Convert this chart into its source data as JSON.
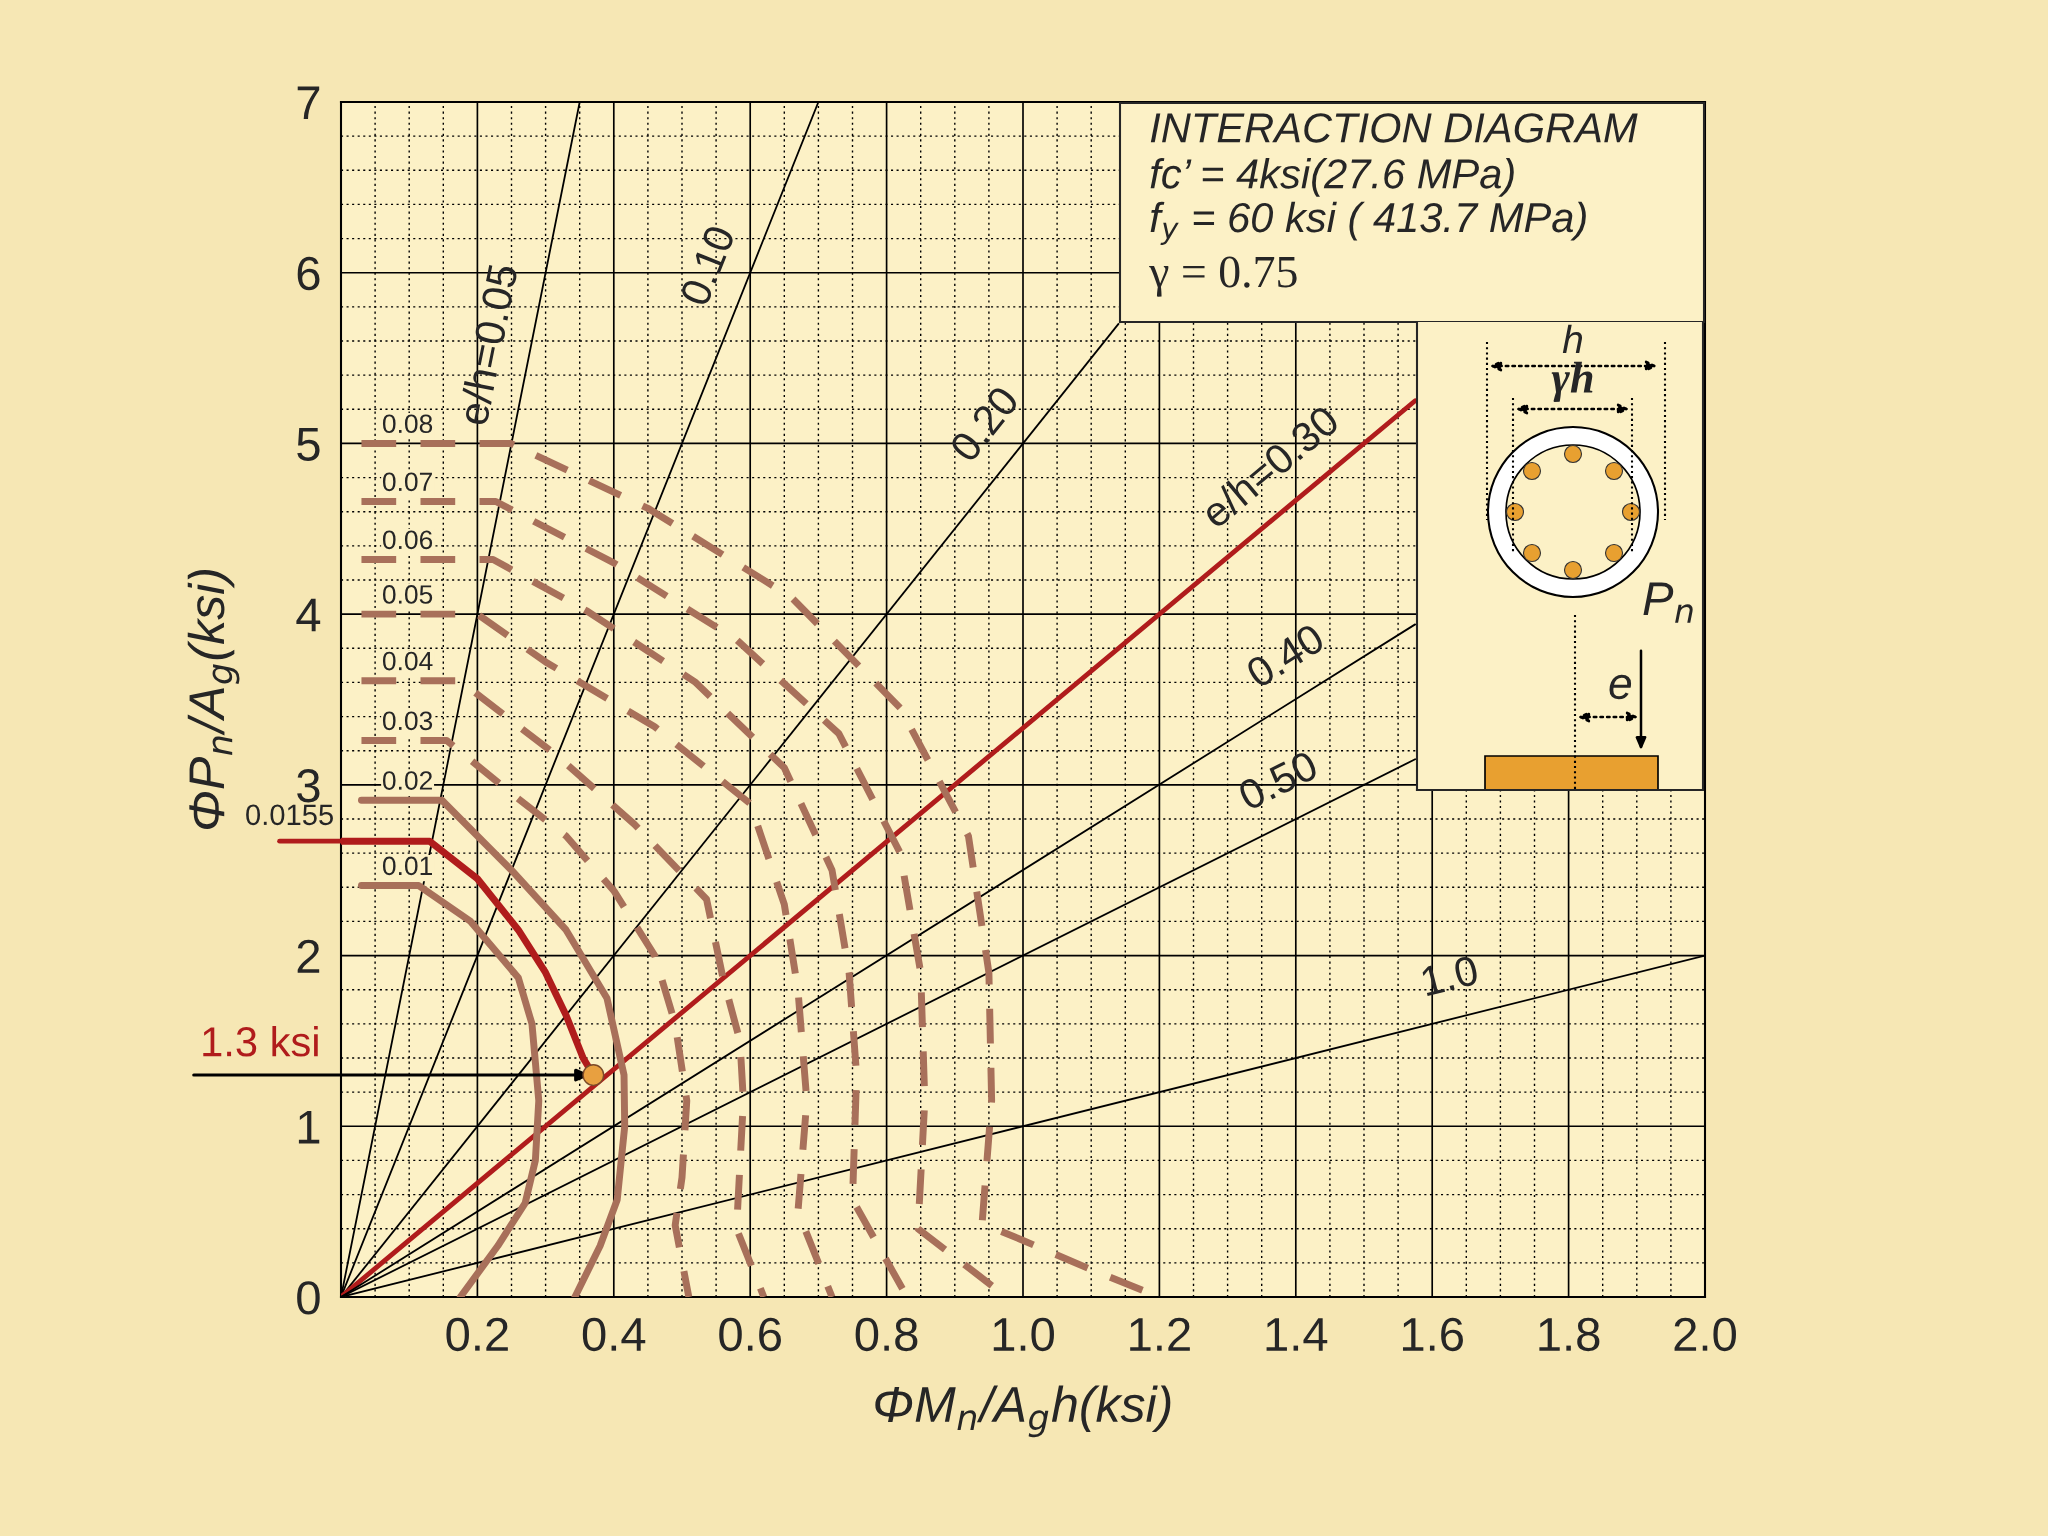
{
  "chart_data": {
    "type": "line",
    "title": "INTERACTION DIAGRAM",
    "xlabel": "ΦM$_{n}$/A$_{g}$h(ksi)",
    "ylabel": "ΦP$_{n}$/A$_{g}$(ksi)",
    "xlim": [
      0,
      2.0
    ],
    "ylim": [
      0,
      7
    ],
    "xticks": [
      0.2,
      0.4,
      0.6,
      0.8,
      {
        "value": 1,
        "label": "1.0"
      },
      1.2,
      1.4,
      1.6,
      1.8,
      {
        "value": 2,
        "label": "2.0"
      }
    ],
    "yticks": [
      0,
      1,
      2,
      3,
      4,
      5,
      6,
      7
    ],
    "grid": true,
    "annotations": [
      "fc’ = 4ksi(27.6 MPa)",
      "f$_{y}$ = 60 ksi ( 413.7 MPa)",
      "γ = 0.75",
      {
        "text": "0.0155",
        "x": 0,
        "y": 2.67
      },
      {
        "text": "1.3 ksi",
        "x": 0.37,
        "y": 1.3
      },
      "h",
      "γh",
      "P$_{n}$",
      "e"
    ],
    "series": [
      {
        "name": "e/h=0.05",
        "color": "#000000",
        "x": [
          0,
          0.35
        ],
        "values": [
          0,
          7
        ]
      },
      {
        "name": "0.10",
        "color": "#000000",
        "x": [
          0,
          0.7
        ],
        "values": [
          0,
          7
        ]
      },
      {
        "name": "0.20",
        "color": "#000000",
        "x": [
          0,
          1.14
        ],
        "values": [
          0,
          5.7
        ]
      },
      {
        "name": "e/h=0.30",
        "color": "#b01c1c",
        "x": [
          0,
          1.575
        ],
        "values": [
          0,
          5.25
        ]
      },
      {
        "name": "0.40",
        "color": "#000000",
        "x": [
          0,
          1.575
        ],
        "values": [
          0,
          3.94
        ]
      },
      {
        "name": "0.50",
        "color": "#000000",
        "x": [
          0,
          1.575
        ],
        "values": [
          0,
          3.15
        ]
      },
      {
        "name": "1.0",
        "color": "#000000",
        "x": [
          0,
          2.0
        ],
        "values": [
          0,
          2.0
        ]
      },
      {
        "name": "0.01",
        "color": "#a8705a",
        "line_style": "solid",
        "x": [
          0.03,
          0.114,
          0.19,
          0.26,
          0.28,
          0.29,
          0.285,
          0.27,
          0.23,
          0.175
        ],
        "values": [
          2.41,
          2.41,
          2.2,
          1.87,
          1.6,
          1.15,
          0.8,
          0.55,
          0.3,
          0
        ]
      },
      {
        "name": "0.02",
        "color": "#a8705a",
        "line_style": "solid",
        "x": [
          0.03,
          0.148,
          0.25,
          0.33,
          0.39,
          0.415,
          0.416,
          0.405,
          0.38,
          0.343
        ],
        "values": [
          2.91,
          2.91,
          2.5,
          2.15,
          1.75,
          1.3,
          1.0,
          0.57,
          0.3,
          0
        ]
      },
      {
        "color": "#b01c1c",
        "line_style": "solid",
        "x": [
          0,
          0.13,
          0.2,
          0.26,
          0.3,
          0.33,
          0.355,
          0.37
        ],
        "values": [
          2.67,
          2.67,
          2.45,
          2.15,
          1.9,
          1.65,
          1.4,
          1.3
        ]
      },
      {
        "name": "0.03",
        "color": "#a8705a",
        "line_style": "dashed",
        "x": [
          0.03,
          0.155,
          0.25,
          0.33,
          0.4,
          0.46,
          0.49,
          0.507,
          0.5,
          0.49,
          0.51
        ],
        "values": [
          3.26,
          3.26,
          2.95,
          2.7,
          2.38,
          2.0,
          1.6,
          1.15,
          0.7,
          0.42,
          0
        ]
      },
      {
        "name": "0.04",
        "color": "#a8705a",
        "line_style": "dashed",
        "x": [
          0.03,
          0.174,
          0.32,
          0.43,
          0.536,
          0.56,
          0.585,
          0.59,
          0.58,
          0.62
        ],
        "values": [
          3.61,
          3.61,
          3.16,
          2.77,
          2.33,
          1.87,
          1.5,
          1.15,
          0.4,
          0
        ]
      },
      {
        "name": "0.05",
        "color": "#a8705a",
        "line_style": "dashed",
        "x": [
          0.03,
          0.2,
          0.3,
          0.46,
          0.6,
          0.65,
          0.67,
          0.683,
          0.67,
          0.72
        ],
        "values": [
          4.0,
          4.0,
          3.72,
          3.34,
          2.89,
          2.3,
          1.8,
          1.15,
          0.5,
          0
        ]
      },
      {
        "name": "0.06",
        "color": "#a8705a",
        "line_style": "dashed",
        "x": [
          0.03,
          0.223,
          0.36,
          0.52,
          0.65,
          0.72,
          0.745,
          0.756,
          0.75,
          0.83
        ],
        "values": [
          4.32,
          4.32,
          4.02,
          3.6,
          3.1,
          2.5,
          1.9,
          1.3,
          0.57,
          0
        ]
      },
      {
        "name": "0.07",
        "color": "#a8705a",
        "line_style": "dashed",
        "x": [
          0.03,
          0.227,
          0.4,
          0.58,
          0.73,
          0.82,
          0.85,
          0.856,
          0.846,
          0.885,
          0.976
        ],
        "values": [
          4.66,
          4.66,
          4.3,
          3.85,
          3.3,
          2.6,
          1.9,
          1.15,
          0.4,
          0.28,
          0
        ]
      },
      {
        "name": "0.08",
        "color": "#a8705a",
        "line_style": "dashed",
        "x": [
          0.03,
          0.249,
          0.45,
          0.66,
          0.82,
          0.92,
          0.95,
          0.954,
          0.94,
          0.995,
          1.1,
          1.2
        ],
        "values": [
          5.0,
          5.0,
          4.62,
          4.1,
          3.45,
          2.7,
          1.9,
          1.15,
          0.43,
          0.34,
          0.16,
          0
        ]
      },
      {
        "type": "scatter",
        "color": "#e8a040",
        "marker": "circle",
        "x": [
          0.37
        ],
        "values": [
          1.3
        ]
      }
    ]
  }
}
